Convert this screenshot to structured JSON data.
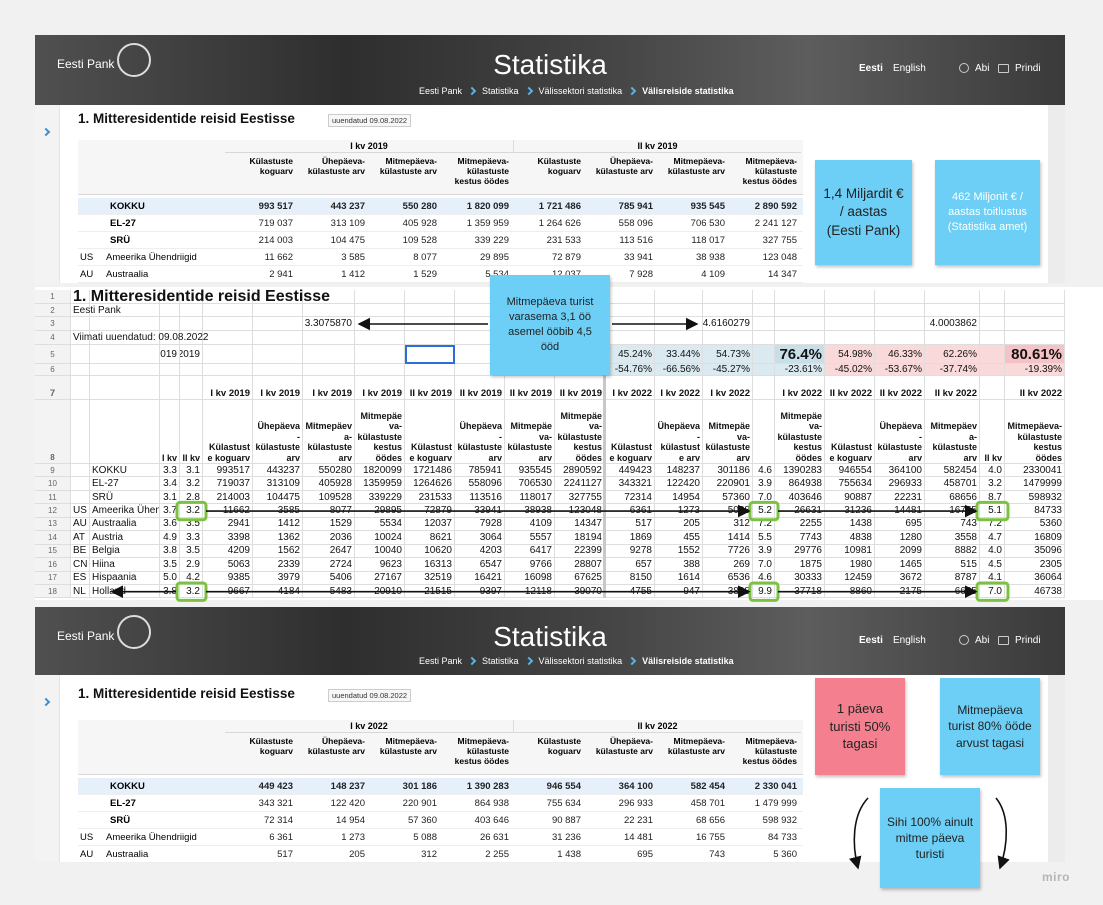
{
  "header": {
    "brand": "Eesti Pank",
    "title": "Statistika",
    "breadcrumb": [
      "Eesti Pank",
      "Statistika",
      "Välissektori statistika",
      "Välisreiside statistika"
    ],
    "languages": [
      "Eesti",
      "English"
    ],
    "links": [
      "Abi",
      "Prindi"
    ]
  },
  "top_table": {
    "title": "1. Mitteresidentide reisid Eestisse",
    "updated": "uuendatud 09.08.2022",
    "groups": [
      "I kv 2019",
      "II kv 2019"
    ],
    "columns": [
      "Külastuste koguarv",
      "Ühepäeva-külastuste arv",
      "Mitmepäeva-külastuste arv",
      "Mitmepäeva-külastuste kestus öödes"
    ],
    "rows": [
      {
        "code": null,
        "name": "KOKKU",
        "values": [
          "993 517",
          "443 237",
          "550 280",
          "1 820 099",
          "1 721 486",
          "785 941",
          "935 545",
          "2 890 592"
        ]
      },
      {
        "code": null,
        "name": "EL-27",
        "values": [
          "719 037",
          "313 109",
          "405 928",
          "1 359 959",
          "1 264 626",
          "558 096",
          "706 530",
          "2 241 127"
        ]
      },
      {
        "code": null,
        "name": "SRÜ",
        "values": [
          "214 003",
          "104 475",
          "109 528",
          "339 229",
          "231 533",
          "113 516",
          "118 017",
          "327 755"
        ]
      },
      {
        "code": "US",
        "name": "Ameerika Ühendriigid",
        "values": [
          "11 662",
          "3 585",
          "8 077",
          "29 895",
          "72 879",
          "33 941",
          "38 938",
          "123 048"
        ]
      },
      {
        "code": "AU",
        "name": "Austraalia",
        "values": [
          "2 941",
          "1 412",
          "1 529",
          "5 534",
          "12 037",
          "7 928",
          "4 109",
          "14 347"
        ]
      }
    ]
  },
  "bottom_table": {
    "title": "1. Mitteresidentide reisid Eestisse",
    "updated": "uuendatud 09.08.2022",
    "groups": [
      "I kv 2022",
      "II kv 2022"
    ],
    "columns": [
      "Külastuste koguarv",
      "Ühepäeva-külastuste arv",
      "Mitmepäeva-külastuste arv",
      "Mitmepäeva-külastuste kestus öödes"
    ],
    "rows": [
      {
        "code": null,
        "name": "KOKKU",
        "values": [
          "449 423",
          "148 237",
          "301 186",
          "1 390 283",
          "946 554",
          "364 100",
          "582 454",
          "2 330 041"
        ]
      },
      {
        "code": null,
        "name": "EL-27",
        "values": [
          "343 321",
          "122 420",
          "220 901",
          "864 938",
          "755 634",
          "296 933",
          "458 701",
          "1 479 999"
        ]
      },
      {
        "code": null,
        "name": "SRÜ",
        "values": [
          "72 314",
          "14 954",
          "57 360",
          "403 646",
          "90 887",
          "22 231",
          "68 656",
          "598 932"
        ]
      },
      {
        "code": "US",
        "name": "Ameerika Ühendriigid",
        "values": [
          "6 361",
          "1 273",
          "5 088",
          "26 631",
          "31 236",
          "14 481",
          "16 755",
          "84 733"
        ]
      },
      {
        "code": "AU",
        "name": "Austraalia",
        "values": [
          "517",
          "205",
          "312",
          "2 255",
          "1 438",
          "695",
          "743",
          "5 360"
        ]
      }
    ]
  },
  "sheet": {
    "rows": [
      [
        "1",
        "1. Mitteresidentide reisid Eestisse",
        null,
        null,
        null,
        null,
        null,
        null,
        null,
        null,
        null,
        null,
        null,
        null,
        null,
        null,
        null,
        null,
        null,
        null,
        null,
        null,
        null
      ],
      [
        "2",
        "Eesti Pank",
        null,
        null,
        null,
        null,
        null,
        null,
        null,
        null,
        null,
        null,
        null,
        null,
        null,
        null,
        null,
        null,
        null,
        null,
        null,
        null,
        null
      ],
      [
        "3",
        null,
        null,
        null,
        null,
        null,
        null,
        "3.3075870",
        null,
        null,
        null,
        null,
        null,
        null,
        null,
        "4.6160279",
        null,
        null,
        null,
        null,
        "4.0003862",
        null,
        null
      ],
      [
        "4",
        "Viimati uuendatud: 09.08.2022",
        null,
        null,
        null,
        null,
        null,
        null,
        null,
        null,
        null,
        null,
        null,
        null,
        null,
        null,
        null,
        null,
        null,
        null,
        null,
        null,
        null
      ],
      [
        "5",
        null,
        null,
        "2019",
        "2019",
        null,
        null,
        null,
        null,
        null,
        null,
        null,
        null,
        "45.24%",
        "33.44%",
        "54.73%",
        null,
        "76.4%",
        "54.98%",
        "46.33%",
        "62.26%",
        null,
        "80.61%"
      ],
      [
        "6",
        null,
        null,
        null,
        null,
        null,
        null,
        null,
        null,
        null,
        null,
        null,
        null,
        "-54.76%",
        "-66.56%",
        "-45.27%",
        null,
        "-23.61%",
        "-45.02%",
        "-53.67%",
        "-37.74%",
        null,
        "-19.39%"
      ],
      [
        "7",
        null,
        null,
        null,
        null,
        "I kv 2019",
        "I kv 2019",
        "I kv 2019",
        "I kv 2019",
        "II kv 2019",
        "II kv 2019",
        "II kv 2019",
        "II kv 2019",
        "I kv 2022",
        "I kv 2022",
        "I kv 2022",
        null,
        "I kv 2022",
        "II kv 2022",
        "II kv 2022",
        "II kv 2022",
        null,
        "II kv 2022"
      ],
      [
        "8",
        null,
        null,
        "I kv",
        "II kv",
        "Külastuste koguarv",
        "Ühepäeva-külastuste arv",
        "Mitmepäeva-külastuste arv",
        "Mitmepäeva-külastuste kestus öödes",
        "Külastuste koguarv",
        "Ühepäeva-külastuste arv",
        "Mitmepäeva-külastuste arv",
        "Mitmepäeva-külastuste kestus öödes",
        "Külastuste koguarv",
        "Ühepäeva-külastuste arv",
        "Mitmepäeva-külastuste arv",
        null,
        "Mitmepäeva-külastuste kestus öödes",
        "Külastuste koguarv",
        "Ühepäeva-külastuste arv",
        "Mitmepäeva-külastuste arv",
        "II kv",
        "Mitmepäeva-külastuste kestus öödes"
      ],
      [
        "9",
        null,
        "KOKKU",
        "3.3",
        "3.1",
        "993517",
        "443237",
        "550280",
        "1820099",
        "1721486",
        "785941",
        "935545",
        "2890592",
        "449423",
        "148237",
        "301186",
        "4.6",
        "1390283",
        "946554",
        "364100",
        "582454",
        "4.0",
        "2330041"
      ],
      [
        "10",
        null,
        "EL-27",
        "3.4",
        "3.2",
        "719037",
        "313109",
        "405928",
        "1359959",
        "1264626",
        "558096",
        "706530",
        "2241127",
        "343321",
        "122420",
        "220901",
        "3.9",
        "864938",
        "755634",
        "296933",
        "458701",
        "3.2",
        "1479999"
      ],
      [
        "11",
        null,
        "SRÜ",
        "3.1",
        "2.8",
        "214003",
        "104475",
        "109528",
        "339229",
        "231533",
        "113516",
        "118017",
        "327755",
        "72314",
        "14954",
        "57360",
        "7.0",
        "403646",
        "90887",
        "22231",
        "68656",
        "8.7",
        "598932"
      ],
      [
        "12",
        "US",
        "Ameerika Ühendriigid",
        "3.7",
        "3.2",
        "11662",
        "3585",
        "8077",
        "29895",
        "72879",
        "33941",
        "38938",
        "123048",
        "6361",
        "1273",
        "5088",
        "5.2",
        "26631",
        "31236",
        "14481",
        "16755",
        "5.1",
        "84733"
      ],
      [
        "13",
        "AU",
        "Austraalia",
        "3.6",
        "3.5",
        "2941",
        "1412",
        "1529",
        "5534",
        "12037",
        "7928",
        "4109",
        "14347",
        "517",
        "205",
        "312",
        "7.2",
        "2255",
        "1438",
        "695",
        "743",
        "7.2",
        "5360"
      ],
      [
        "14",
        "AT",
        "Austria",
        "4.9",
        "3.3",
        "3398",
        "1362",
        "2036",
        "10024",
        "8621",
        "3064",
        "5557",
        "18194",
        "1869",
        "455",
        "1414",
        "5.5",
        "7743",
        "4838",
        "1280",
        "3558",
        "4.7",
        "16809"
      ],
      [
        "15",
        "BE",
        "Belgia",
        "3.8",
        "3.5",
        "4209",
        "1562",
        "2647",
        "10040",
        "10620",
        "4203",
        "6417",
        "22399",
        "9278",
        "1552",
        "7726",
        "3.9",
        "29776",
        "10981",
        "2099",
        "8882",
        "4.0",
        "35096"
      ],
      [
        "16",
        "CN",
        "Hiina",
        "3.5",
        "2.9",
        "5063",
        "2339",
        "2724",
        "9623",
        "16313",
        "6547",
        "9766",
        "28807",
        "657",
        "388",
        "269",
        "7.0",
        "1875",
        "1980",
        "1465",
        "515",
        "4.5",
        "2305"
      ],
      [
        "17",
        "ES",
        "Hispaania",
        "5.0",
        "4.2",
        "9385",
        "3979",
        "5406",
        "27167",
        "32519",
        "16421",
        "16098",
        "67625",
        "8150",
        "1614",
        "6536",
        "4.6",
        "30333",
        "12459",
        "3672",
        "8787",
        "4.1",
        "36064"
      ],
      [
        "18",
        "NL",
        "Holland",
        "3.8",
        "3.2",
        "9667",
        "4184",
        "5483",
        "20910",
        "21515",
        "9397",
        "12118",
        "39070",
        "4755",
        "947",
        "3808",
        "9.9",
        "37718",
        "8860",
        "2175",
        "6685",
        "7.0",
        "46738"
      ]
    ]
  },
  "notes": {
    "top": [
      "1,4 Miljardit € / aastas (Eesti Pank)",
      "462 Miljonit € / aastas toitlustus (Statistika amet)"
    ],
    "sheet": "Mitmepäeva turist varasema 3,1 öö asemel ööbib 4,5 ööd",
    "bottom": [
      "1 päeva turisti 50% tagasi",
      "Mitmepäeva turist 80% ööde arvust tagasi",
      "Sihi 100% ainult mitme päeva turisti"
    ]
  },
  "footer": "miro"
}
